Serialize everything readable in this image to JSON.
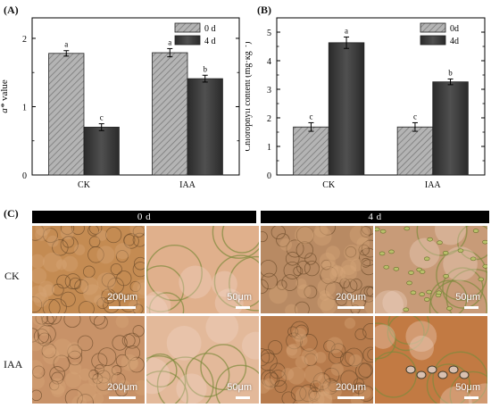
{
  "panels": {
    "a_label": "(A)",
    "b_label": "(B)",
    "c_label": "(C)"
  },
  "chart_data": [
    {
      "type": "bar",
      "categories": [
        "CK",
        "IAA"
      ],
      "series": [
        {
          "name": "0 d",
          "values": [
            1.78,
            1.79
          ],
          "errors": [
            0.04,
            0.06
          ],
          "letters": [
            "a",
            "a"
          ],
          "pattern": "hatched",
          "color": "#a7a7a7"
        },
        {
          "name": "4 d",
          "values": [
            0.7,
            1.41
          ],
          "errors": [
            0.05,
            0.05
          ],
          "letters": [
            "c",
            "b"
          ],
          "pattern": "solid",
          "color": "#383838"
        }
      ],
      "ylabel_italic": "a*",
      "ylabel_rest": " value",
      "ylim": [
        0,
        2.3
      ],
      "yticks": [
        0,
        1,
        2
      ],
      "legend": "top-right"
    },
    {
      "type": "bar",
      "categories": [
        "CK",
        "IAA"
      ],
      "series": [
        {
          "name": "0d",
          "values": [
            1.68,
            1.68
          ],
          "errors": [
            0.15,
            0.15
          ],
          "letters": [
            "c",
            "c"
          ],
          "pattern": "hatched",
          "color": "#a7a7a7"
        },
        {
          "name": "4d",
          "values": [
            4.63,
            3.26
          ],
          "errors": [
            0.2,
            0.1
          ],
          "letters": [
            "a",
            "b"
          ],
          "pattern": "solid",
          "color": "#383838"
        }
      ],
      "ylabel_main": "Chlorophyll content (mg·kg",
      "ylabel_sup": "−1",
      "ylabel_end": ")",
      "ylim": [
        0,
        5.5
      ],
      "yticks": [
        0,
        1,
        2,
        3,
        4,
        5
      ],
      "legend": "top-right"
    }
  ],
  "micrographs": {
    "col_headers": [
      "0 d",
      "4 d"
    ],
    "row_labels": [
      "CK",
      "IAA"
    ],
    "scale_labels": [
      [
        "200μm",
        "50μm",
        "200μm",
        "50μm"
      ],
      [
        "200μm",
        "50μm",
        "200μm",
        "50μm"
      ]
    ]
  }
}
